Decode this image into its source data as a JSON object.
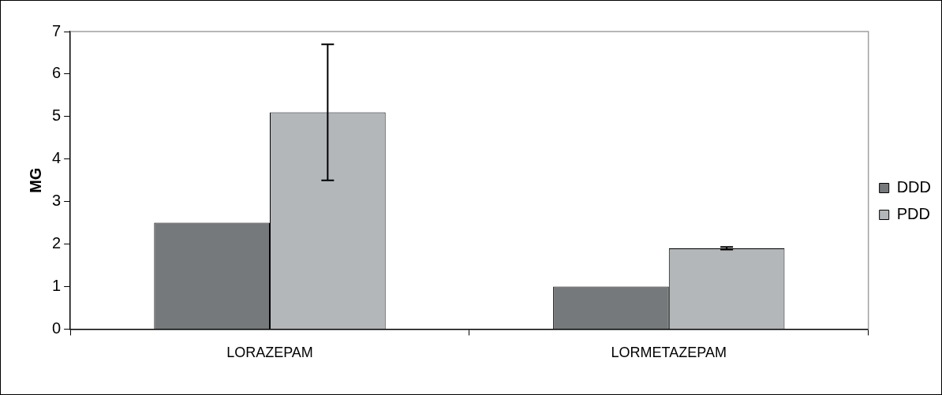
{
  "chart_data": {
    "type": "bar",
    "ylabel": "MG",
    "categories": [
      "LORAZEPAM",
      "LORMETAZEPAM"
    ],
    "series": [
      {
        "name": "DDD",
        "color": "#75797b",
        "values": [
          2.5,
          1.0
        ]
      },
      {
        "name": "PDD",
        "color": "#b3b7ba",
        "values": [
          5.1,
          1.9
        ],
        "errors": [
          [
            3.5,
            6.7
          ],
          0.03
        ]
      }
    ],
    "ylim": [
      0,
      7
    ],
    "yticks": [
      0,
      1,
      2,
      3,
      4,
      5,
      6,
      7
    ],
    "grid": false,
    "legend": "right"
  }
}
